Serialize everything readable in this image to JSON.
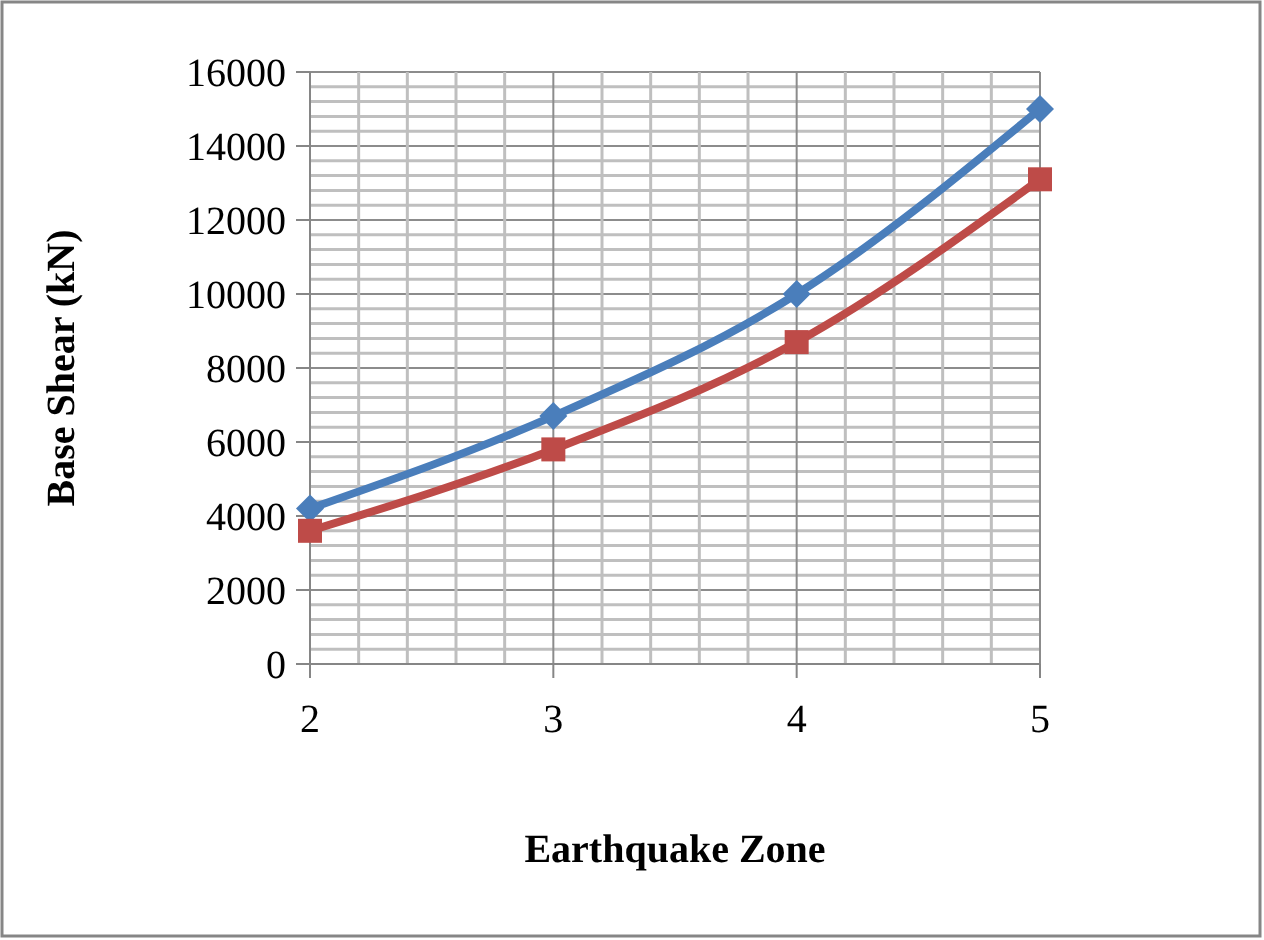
{
  "chart_data": {
    "type": "line",
    "xlabel": "Earthquake Zone",
    "ylabel": "Base Shear (kN)",
    "x": [
      2,
      3,
      4,
      5
    ],
    "xlim": [
      2,
      5
    ],
    "xticks": [
      2,
      3,
      4,
      5
    ],
    "ylim": [
      0,
      16000
    ],
    "yticks": [
      0,
      2000,
      4000,
      6000,
      8000,
      10000,
      12000,
      14000,
      16000
    ],
    "grid": true,
    "series": [
      {
        "color": "#4a7ebb",
        "marker": "diamond",
        "values": [
          4200,
          6700,
          10000,
          15000
        ]
      },
      {
        "color": "#be4b48",
        "marker": "square",
        "values": [
          3600,
          5800,
          8700,
          13100
        ]
      }
    ]
  }
}
